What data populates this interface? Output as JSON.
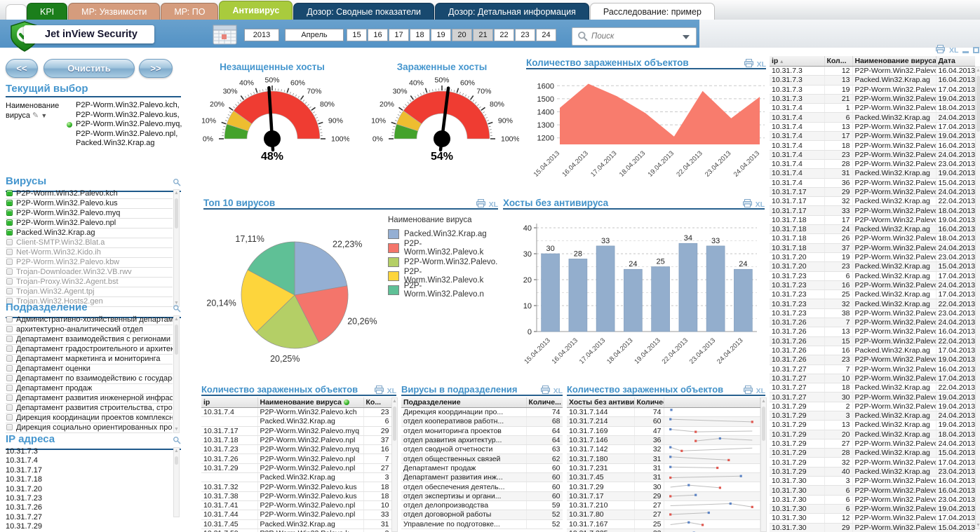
{
  "app": {
    "title": "Jet inView Security"
  },
  "tabs": [
    {
      "label": "KPI",
      "bg": "#1b7e1b",
      "fg": "#ffffff",
      "active": false
    },
    {
      "label": "МР: Уязвимости",
      "bg": "#d59c7d",
      "fg": "#ffffff",
      "active": false
    },
    {
      "label": "МР: ПО",
      "bg": "#d59c7d",
      "fg": "#ffffff",
      "active": false
    },
    {
      "label": "Антивирус",
      "bg": "#a9cb3d",
      "fg": "#ffffff",
      "active": true
    },
    {
      "label": "Дозор: Сводные показатели",
      "bg": "#18496f",
      "fg": "#ffffff",
      "active": false
    },
    {
      "label": "Дозор: Детальная информация",
      "bg": "#18496f",
      "fg": "#ffffff",
      "active": false
    },
    {
      "label": "Расследование: пример",
      "bg": "#ffffff",
      "fg": "#222222",
      "active": false
    }
  ],
  "header": {
    "year": "2013",
    "month": "Апрель",
    "days": [
      "15",
      "16",
      "17",
      "18",
      "19",
      "20",
      "21",
      "22",
      "23",
      "24"
    ],
    "selected_days": [
      "20",
      "21"
    ],
    "search_placeholder": "Поиск"
  },
  "toolbar": {
    "back": "<<",
    "clear": "Очистить",
    "forward": ">>"
  },
  "icons": {
    "xl": "XL"
  },
  "current_selection": {
    "title": "Текущий выбор",
    "field": "Наименование вируса",
    "marker_index": 2,
    "values": [
      "P2P-Worm.Win32.Palevo.kch",
      "P2P-Worm.Win32.Palevo.kus",
      "P2P-Worm.Win32.Palevo.myq",
      "P2P-Worm.Win32.Palevo.npl",
      "Packed.Win32.Krap.ag"
    ]
  },
  "lists": {
    "viruses": {
      "title": "Вирусы",
      "selected": [
        "P2P-Worm.Win32.Palevo.kch",
        "P2P-Worm.Win32.Palevo.kus",
        "P2P-Worm.Win32.Palevo.myq",
        "P2P-Worm.Win32.Palevo.npl",
        "Packed.Win32.Krap.ag"
      ],
      "unselected": [
        "Client-SMTP.Win32.Blat.a",
        "Net-Worm.Win32.Kido.ih",
        "P2P-Worm.Win32.Palevo.kbw",
        "Trojan-Downloader.Win32.VB.rwv",
        "Trojan-Proxy.Win32.Agent.bst",
        "Trojan.Win32.Agent.tpj",
        "Trojan.Win32.Hosts2.gen"
      ]
    },
    "departments": {
      "title": "Подразделение",
      "items": [
        "Административно-хозяйственный  департаме ...",
        "архитектурно-аналитический отдел",
        "Департамент взаимодействия с регионами",
        "Департамент градостроительного и архитек...",
        "Департамент маркетинга и мониторинга",
        "Департамент оценки",
        "Департамент по взаимодействию с государс...",
        "Департамент продаж",
        "Департамент развития инженерной инфрас...",
        "Департамент развития строительства, строи...",
        "Дирекция  координации  проектов  комплексн ...",
        "Дирекция  социально  ориентированных  прое..."
      ]
    },
    "ips": {
      "title": "IP адреса",
      "items": [
        "10.31.7.3",
        "10.31.7.4",
        "10.31.7.17",
        "10.31.7.18",
        "10.31.7.20",
        "10.31.7.23",
        "10.31.7.26",
        "10.31.7.27",
        "10.31.7.29"
      ]
    }
  },
  "chart_data": [
    {
      "type": "gauge",
      "title": "Незащищенные хосты",
      "value": 48,
      "unit": "%",
      "min": 0,
      "max": 100,
      "ticks": [
        0,
        10,
        20,
        30,
        40,
        50,
        60,
        70,
        80,
        90,
        100
      ],
      "segments": [
        {
          "from": 0,
          "to": 10,
          "color": "#44a22b"
        },
        {
          "from": 10,
          "to": 20,
          "color": "#eebd30"
        },
        {
          "from": 20,
          "to": 100,
          "color": "#ef3c32"
        }
      ]
    },
    {
      "type": "gauge",
      "title": "Зараженные хосты",
      "value": 54,
      "unit": "%",
      "min": 0,
      "max": 100,
      "ticks": [
        0,
        10,
        20,
        30,
        40,
        50,
        60,
        70,
        80,
        90,
        100
      ],
      "segments": [
        {
          "from": 0,
          "to": 10,
          "color": "#44a22b"
        },
        {
          "from": 10,
          "to": 20,
          "color": "#eebd30"
        },
        {
          "from": 20,
          "to": 100,
          "color": "#ef3c32"
        }
      ]
    },
    {
      "type": "area",
      "title": "Количество зараженных объектов",
      "x": [
        "15.04.2013",
        "16.04.2013",
        "17.04.2013",
        "18.04.2013",
        "19.04.2013",
        "22.04.2013",
        "23.04.2013",
        "24.04.2013"
      ],
      "values": [
        1430,
        1615,
        1520,
        1390,
        1210,
        1560,
        1350,
        1515
      ],
      "ylim": [
        1150,
        1650
      ],
      "yticks": [
        1200,
        1300,
        1400,
        1500,
        1600
      ],
      "color": "#f87c6d",
      "grid": true,
      "legend": false
    },
    {
      "type": "pie",
      "title": "Топ 10 вирусов",
      "legend_title": "Наименование вируса",
      "legend_position": "right",
      "slices": [
        {
          "label": "Packed.Win32.Krap.ag",
          "value": 22.23,
          "display": "22,23%",
          "color": "#94afd3"
        },
        {
          "label": "P2P-Worm.Win32.Palevo.k",
          "value": 20.26,
          "display": "20,26%",
          "color": "#f4756b"
        },
        {
          "label": "P2P-Worm.Win32.Palevo.",
          "value": 20.25,
          "display": "20,25%",
          "color": "#b4cf66"
        },
        {
          "label": "P2P-Worm.Win32.Palevo.k",
          "value": 20.14,
          "display": "20,14%",
          "color": "#fdd53c"
        },
        {
          "label": "P2P-Worm.Win32.Palevo.n",
          "value": 17.11,
          "display": "17,11%",
          "color": "#5fc096"
        }
      ]
    },
    {
      "type": "bar",
      "title": "Хосты без антивируса",
      "categories": [
        "15.04.2013",
        "16.04.2013",
        "17.04.2013",
        "18.04.2013",
        "19.04.2013",
        "22.04.2013",
        "23.04.2013",
        "24.04.2013"
      ],
      "values": [
        30,
        28,
        33,
        24,
        25,
        34,
        33,
        24
      ],
      "ylim": [
        0,
        40
      ],
      "yticks": [
        0,
        10,
        20,
        30,
        40
      ],
      "color": "#93aecd",
      "grid": true,
      "legend": false
    }
  ],
  "tables": {
    "infected": {
      "title": "Количество зараженных объектов",
      "columns": [
        "ip",
        "Наименование вируса",
        "Ко..."
      ],
      "rows": [
        [
          "10.31.7.4",
          "P2P-Worm.Win32.Palevo.kch",
          "23"
        ],
        [
          "",
          "Packed.Win32.Krap.ag",
          "6"
        ],
        [
          "10.31.7.17",
          "P2P-Worm.Win32.Palevo.myq",
          "29"
        ],
        [
          "10.31.7.18",
          "P2P-Worm.Win32.Palevo.npl",
          "37"
        ],
        [
          "10.31.7.23",
          "P2P-Worm.Win32.Palevo.myq",
          "16"
        ],
        [
          "10.31.7.26",
          "P2P-Worm.Win32.Palevo.npl",
          "7"
        ],
        [
          "10.31.7.29",
          "P2P-Worm.Win32.Palevo.npl",
          "27"
        ],
        [
          "",
          "Packed.Win32.Krap.ag",
          "3"
        ],
        [
          "10.31.7.32",
          "P2P-Worm.Win32.Palevo.kus",
          "18"
        ],
        [
          "10.31.7.38",
          "P2P-Worm.Win32.Palevo.kus",
          "18"
        ],
        [
          "10.31.7.41",
          "P2P-Worm.Win32.Palevo.npl",
          "10"
        ],
        [
          "10.31.7.44",
          "P2P-Worm.Win32.Palevo.npl",
          "33"
        ],
        [
          "10.31.7.45",
          "Packed.Win32.Krap.ag",
          "31"
        ],
        [
          "10.31.7.50",
          "P2P-Worm.Win32.Palevo.k",
          "3"
        ]
      ]
    },
    "departments": {
      "title": "Вирусы в подразделения",
      "columns": [
        "Подразделение",
        "Количе..."
      ],
      "rows": [
        [
          "Дирекция  координации  про...",
          "74"
        ],
        [
          "отдел кооперативов работн...",
          "68"
        ],
        [
          "отдел мониторинга проектов",
          "64"
        ],
        [
          "отдел развития архитектур...",
          "64"
        ],
        [
          "отдел сводной отчетности",
          "63"
        ],
        [
          "отдел общественных связей",
          "62"
        ],
        [
          "Департамент продаж",
          "60"
        ],
        [
          "Департамент развития инж...",
          "60"
        ],
        [
          "отдел обеспечения  деятель...",
          "60"
        ],
        [
          "отдел  экспертизы  и  органи...",
          "60"
        ],
        [
          "отдел делопроизводства",
          "59"
        ],
        [
          "отдел договорной работы",
          "52"
        ],
        [
          "Управление  по  подготовке...",
          "52"
        ]
      ]
    },
    "hosts": {
      "title": "Количество зараженных объектов",
      "columns": [
        "Хосты без антиви...",
        "Количест..."
      ],
      "rows": [
        {
          "ip": "10.31.7.144",
          "value": "74",
          "spark": [
            [
              0.04,
              0.15,
              1
            ]
          ]
        },
        {
          "ip": "10.31.7.214",
          "value": "60",
          "spark": [
            [
              0.03,
              0.18,
              1
            ],
            [
              0.97,
              0.6,
              2
            ]
          ]
        },
        {
          "ip": "10.31.7.169",
          "value": "47",
          "spark": [
            [
              0.03,
              0.22,
              1
            ],
            [
              0.32,
              0.62,
              2
            ],
            [
              0.97,
              0.5,
              0
            ]
          ]
        },
        {
          "ip": "10.31.7.146",
          "value": "36",
          "spark": [
            [
              0.32,
              0.62,
              2
            ],
            [
              0.6,
              0.22,
              1
            ],
            [
              0.97,
              0.5,
              0
            ]
          ]
        },
        {
          "ip": "10.31.7.142",
          "value": "32",
          "spark": [
            [
              0.03,
              0.18,
              1
            ],
            [
              0.16,
              0.75,
              2
            ],
            [
              0.97,
              0.3,
              0
            ]
          ]
        },
        {
          "ip": "10.31.7.180",
          "value": "31",
          "spark": [
            [
              0.03,
              0.15,
              1
            ],
            [
              0.7,
              0.65,
              2
            ]
          ]
        },
        {
          "ip": "10.31.7.231",
          "value": "31",
          "spark": [
            [
              0.03,
              0.3,
              1
            ],
            [
              0.57,
              0.45,
              2
            ]
          ]
        },
        {
          "ip": "10.31.7.45",
          "value": "31",
          "spark": [
            [
              0.03,
              0.55,
              2
            ],
            [
              0.84,
              0.3,
              1
            ]
          ]
        },
        {
          "ip": "10.31.7.29",
          "value": "30",
          "spark": [
            [
              0.03,
              0.5,
              0
            ],
            [
              0.24,
              0.18,
              1
            ],
            [
              0.6,
              0.6,
              2
            ]
          ]
        },
        {
          "ip": "10.31.7.17",
          "value": "29",
          "spark": [
            [
              0.03,
              0.5,
              2
            ],
            [
              0.32,
              0.3,
              1
            ]
          ]
        },
        {
          "ip": "10.31.7.210",
          "value": "27",
          "spark": [
            [
              0.03,
              0.55,
              0
            ],
            [
              0.72,
              0.22,
              1
            ],
            [
              0.97,
              0.75,
              2
            ]
          ]
        },
        {
          "ip": "10.31.7.80",
          "value": "27",
          "spark": [
            [
              0.03,
              0.5,
              2
            ],
            [
              0.47,
              0.22,
              1
            ]
          ]
        },
        {
          "ip": "10.31.7.167",
          "value": "25",
          "spark": [
            [
              0.03,
              0.55,
              0
            ],
            [
              0.24,
              0.2,
              1
            ],
            [
              0.4,
              0.6,
              2
            ]
          ]
        },
        {
          "ip": "10.31.7.225",
          "value": "23",
          "spark": [
            [
              0.3,
              0.4,
              1
            ]
          ]
        }
      ]
    },
    "detail": {
      "columns": [
        "ip",
        "Кол...",
        "Наименование вируса",
        "Дата"
      ],
      "rows": [
        [
          "10.31.7.3",
          "12",
          "P2P-Worm.Win32.Palevo.npl",
          "16.04.2013"
        ],
        [
          "10.31.7.3",
          "13",
          "Packed.Win32.Krap.ag",
          "16.04.2013"
        ],
        [
          "10.31.7.3",
          "19",
          "P2P-Worm.Win32.Palevo.kch",
          "17.04.2013"
        ],
        [
          "10.31.7.3",
          "21",
          "P2P-Worm.Win32.Palevo. ...",
          "19.04.2013"
        ],
        [
          "10.31.7.4",
          "1",
          "P2P-Worm.Win32.Palevo.kch",
          "18.04.2013"
        ],
        [
          "10.31.7.4",
          "6",
          "Packed.Win32.Krap.ag",
          "24.04.2013"
        ],
        [
          "10.31.7.4",
          "13",
          "P2P-Worm.Win32.Palevo.npl",
          "17.04.2013"
        ],
        [
          "10.31.7.4",
          "17",
          "P2P-Worm.Win32.Palevo.kch",
          "19.04.2013"
        ],
        [
          "10.31.7.4",
          "18",
          "P2P-Worm.Win32.Palevo.npl",
          "16.04.2013"
        ],
        [
          "10.31.7.4",
          "23",
          "P2P-Worm.Win32.Palevo.kch",
          "24.04.2013"
        ],
        [
          "10.31.7.4",
          "28",
          "P2P-Worm.Win32.Palevo.npl",
          "23.04.2013"
        ],
        [
          "10.31.7.4",
          "31",
          "Packed.Win32.Krap.ag",
          "19.04.2013"
        ],
        [
          "10.31.7.4",
          "36",
          "P2P-Worm.Win32.Palevo.kus",
          "15.04.2013"
        ],
        [
          "10.31.7.17",
          "29",
          "P2P-Worm.Win32.Palevo. ...",
          "24.04.2013"
        ],
        [
          "10.31.7.17",
          "32",
          "Packed.Win32.Krap.ag",
          "22.04.2013"
        ],
        [
          "10.31.7.17",
          "33",
          "P2P-Worm.Win32.Palevo. ...",
          "18.04.2013"
        ],
        [
          "10.31.7.18",
          "17",
          "P2P-Worm.Win32.Palevo.npl",
          "19.04.2013"
        ],
        [
          "10.31.7.18",
          "24",
          "Packed.Win32.Krap.ag",
          "16.04.2013"
        ],
        [
          "10.31.7.18",
          "26",
          "P2P-Worm.Win32.Palevo. ...",
          "18.04.2013"
        ],
        [
          "10.31.7.18",
          "37",
          "P2P-Worm.Win32.Palevo.npl",
          "24.04.2013"
        ],
        [
          "10.31.7.20",
          "19",
          "P2P-Worm.Win32.Palevo.npl",
          "23.04.2013"
        ],
        [
          "10.31.7.20",
          "23",
          "Packed.Win32.Krap.ag",
          "15.04.2013"
        ],
        [
          "10.31.7.23",
          "6",
          "Packed.Win32.Krap.ag",
          "17.04.2013"
        ],
        [
          "10.31.7.23",
          "16",
          "P2P-Worm.Win32.Palevo. ...",
          "24.04.2013"
        ],
        [
          "10.31.7.23",
          "25",
          "Packed.Win32.Krap.ag",
          "17.04.2013"
        ],
        [
          "10.31.7.23",
          "32",
          "Packed.Win32.Krap.ag",
          "22.04.2013"
        ],
        [
          "10.31.7.23",
          "38",
          "P2P-Worm.Win32.Palevo.kus",
          "23.04.2013"
        ],
        [
          "10.31.7.26",
          "7",
          "P2P-Worm.Win32.Palevo.npl",
          "24.04.2013"
        ],
        [
          "10.31.7.26",
          "13",
          "P2P-Worm.Win32.Palevo. ...",
          "16.04.2013"
        ],
        [
          "10.31.7.26",
          "15",
          "P2P-Worm.Win32.Palevo.npl",
          "22.04.2013"
        ],
        [
          "10.31.7.26",
          "16",
          "Packed.Win32.Krap.ag",
          "17.04.2013"
        ],
        [
          "10.31.7.26",
          "23",
          "P2P-Worm.Win32.Palevo.npl",
          "19.04.2013"
        ],
        [
          "10.31.7.27",
          "7",
          "P2P-Worm.Win32.Palevo.kus",
          "16.04.2013"
        ],
        [
          "10.31.7.27",
          "10",
          "P2P-Worm.Win32.Palevo.kch",
          "17.04.2013"
        ],
        [
          "10.31.7.27",
          "18",
          "Packed.Win32.Krap.ag",
          "22.04.2013"
        ],
        [
          "10.31.7.27",
          "30",
          "P2P-Worm.Win32.Palevo.npl",
          "19.04.2013"
        ],
        [
          "10.31.7.29",
          "2",
          "P2P-Worm.Win32.Palevo.npl",
          "19.04.2013"
        ],
        [
          "10.31.7.29",
          "3",
          "Packed.Win32.Krap.ag",
          "24.04.2013"
        ],
        [
          "10.31.7.29",
          "13",
          "Packed.Win32.Krap.ag",
          "19.04.2013"
        ],
        [
          "10.31.7.29",
          "20",
          "Packed.Win32.Krap.ag",
          "18.04.2013"
        ],
        [
          "10.31.7.29",
          "27",
          "P2P-Worm.Win32.Palevo.npl",
          "24.04.2013"
        ],
        [
          "10.31.7.29",
          "28",
          "Packed.Win32.Krap.ag",
          "15.04.2013"
        ],
        [
          "10.31.7.29",
          "32",
          "P2P-Worm.Win32.Palevo. ...",
          "17.04.2013"
        ],
        [
          "10.31.7.29",
          "40",
          "Packed.Win32.Krap.ag",
          "23.04.2013"
        ],
        [
          "10.31.7.30",
          "3",
          "P2P-Worm.Win32.Palevo.kch",
          "16.04.2013"
        ],
        [
          "10.31.7.30",
          "6",
          "P2P-Worm.Win32.Palevo.kch",
          "16.04.2013"
        ],
        [
          "10.31.7.30",
          "6",
          "P2P-Worm.Win32.Palevo.kch",
          "23.04.2013"
        ],
        [
          "10.31.7.30",
          "6",
          "P2P-Worm.Win32.Palevo.npl",
          "19.04.2013"
        ],
        [
          "10.31.7.30",
          "12",
          "P2P-Worm.Win32.Palevo.npl",
          "17.04.2013"
        ],
        [
          "10.31.7.30",
          "29",
          "P2P-Worm.Win32.Palevo ...",
          "15.04.2013"
        ]
      ]
    }
  }
}
